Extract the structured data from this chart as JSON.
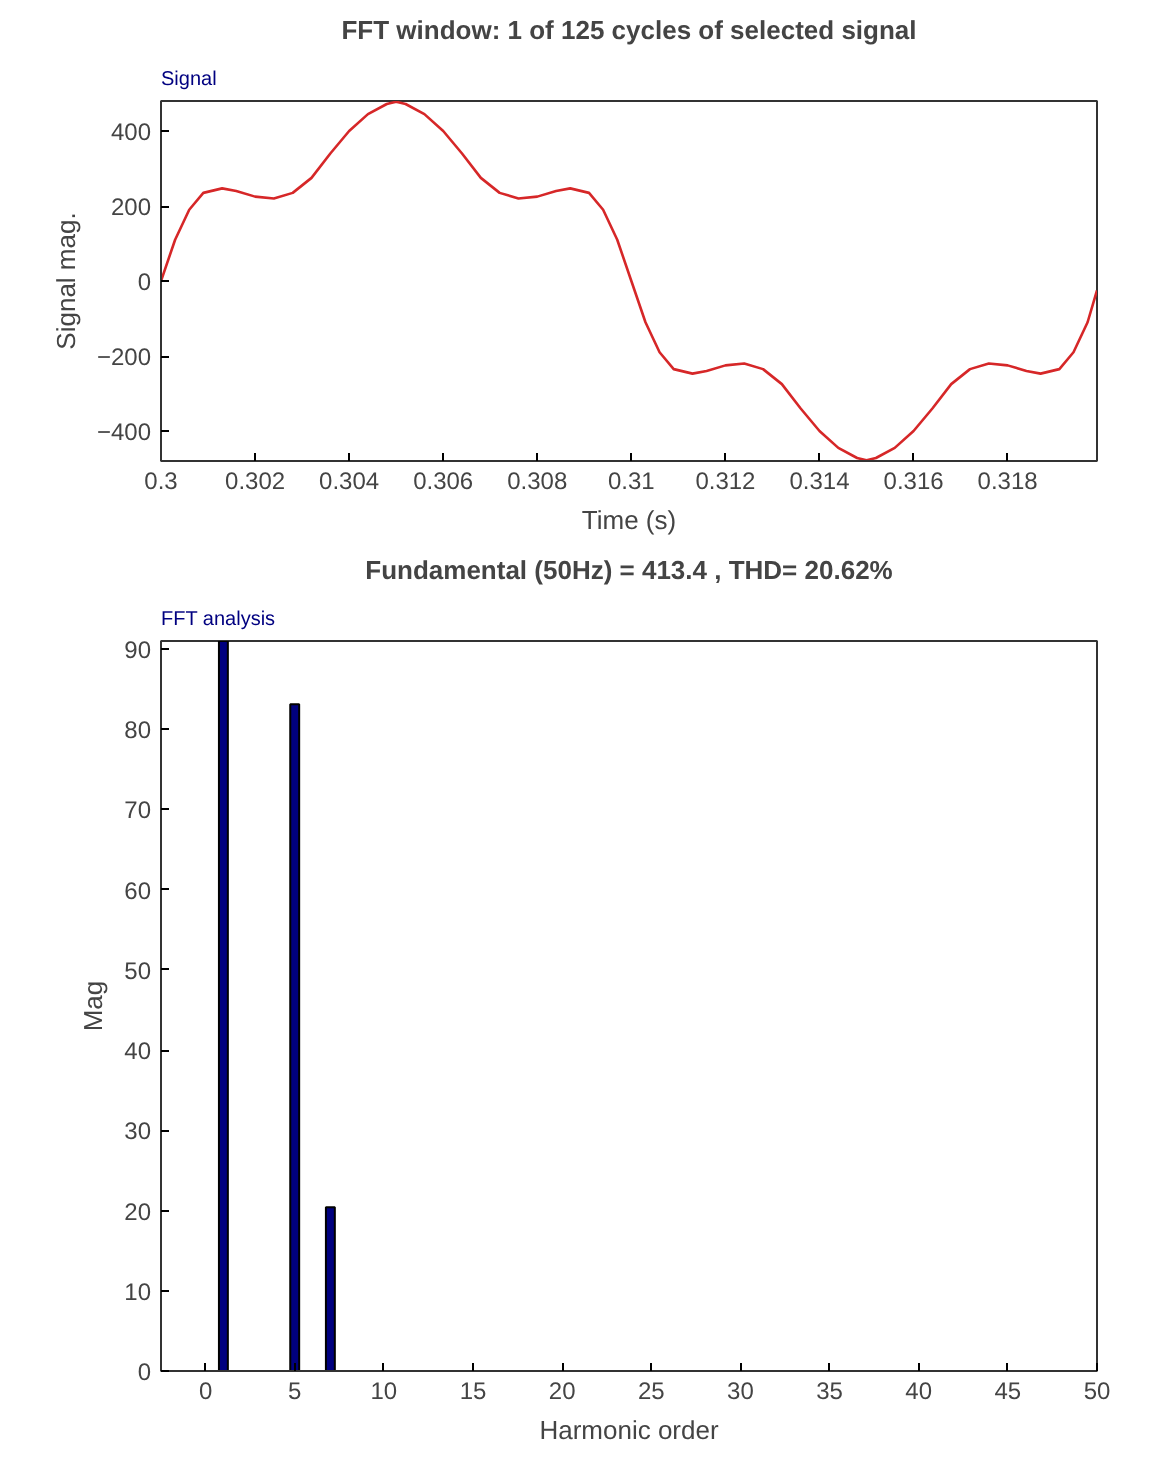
{
  "chart_data": [
    {
      "type": "line",
      "title": "FFT window: 1 of 125 cycles of selected signal",
      "xlabel": "Time (s)",
      "ylabel": "Signal mag.",
      "annotations": [
        "Signal"
      ],
      "x": [
        0.3,
        0.3003,
        0.3006,
        0.3009,
        0.3013,
        0.3016,
        0.302,
        0.3024,
        0.3028,
        0.3032,
        0.3036,
        0.304,
        0.3044,
        0.3048,
        0.305,
        0.3052,
        0.3056,
        0.306,
        0.3064,
        0.3068,
        0.3072,
        0.3076,
        0.308,
        0.3084,
        0.3087,
        0.3091,
        0.3094,
        0.3097,
        0.31,
        0.3103,
        0.3106,
        0.3109,
        0.3113,
        0.3116,
        0.312,
        0.3124,
        0.3128,
        0.3132,
        0.3136,
        0.314,
        0.3144,
        0.3148,
        0.315,
        0.3152,
        0.3156,
        0.316,
        0.3164,
        0.3168,
        0.3172,
        0.3176,
        0.318,
        0.3184,
        0.3187,
        0.3191,
        0.3194,
        0.3197,
        0.3199
      ],
      "series": [
        {
          "color": "#d62728",
          "values": [
            0,
            110,
            190,
            235,
            247,
            240,
            225,
            220,
            235,
            275,
            340,
            400,
            445,
            472,
            478,
            472,
            445,
            400,
            340,
            275,
            235,
            220,
            225,
            240,
            247,
            235,
            190,
            110,
            0,
            -110,
            -190,
            -235,
            -247,
            -240,
            -225,
            -220,
            -235,
            -275,
            -340,
            -400,
            -445,
            -472,
            -478,
            -472,
            -445,
            -400,
            -340,
            -275,
            -235,
            -220,
            -225,
            -240,
            -247,
            -235,
            -190,
            -110,
            -25
          ]
        }
      ],
      "xlim": [
        0.3,
        0.3199
      ],
      "xticks": [
        {
          "value": 0.3,
          "label": "0.3"
        },
        {
          "value": 0.302,
          "label": "0.302"
        },
        {
          "value": 0.304,
          "label": "0.304"
        },
        {
          "value": 0.306,
          "label": "0.306"
        },
        {
          "value": 0.308,
          "label": "0.308"
        },
        {
          "value": 0.31,
          "label": "0.31"
        },
        {
          "value": 0.312,
          "label": "0.312"
        },
        {
          "value": 0.314,
          "label": "0.314"
        },
        {
          "value": 0.316,
          "label": "0.316"
        },
        {
          "value": 0.318,
          "label": "0.318"
        }
      ],
      "ylim": [
        -480,
        480
      ],
      "yticks": [
        -400,
        -200,
        0,
        200,
        400
      ],
      "grid": false
    },
    {
      "type": "bar",
      "title": "Fundamental (50Hz) = 413.4 , THD= 20.62%",
      "xlabel": "Harmonic order",
      "ylabel": "Mag",
      "annotations": [
        "FFT analysis"
      ],
      "x": [
        1,
        5,
        7
      ],
      "values": [
        91,
        83.1,
        20.4
      ],
      "color": "#00007f",
      "xlim": [
        -2.5,
        50
      ],
      "xticks": [
        0,
        5,
        10,
        15,
        20,
        25,
        30,
        35,
        40,
        45,
        50
      ],
      "ylim": [
        0,
        91
      ],
      "yticks": [
        0,
        10,
        20,
        30,
        40,
        50,
        60,
        70,
        80,
        90
      ],
      "grid": false
    }
  ]
}
